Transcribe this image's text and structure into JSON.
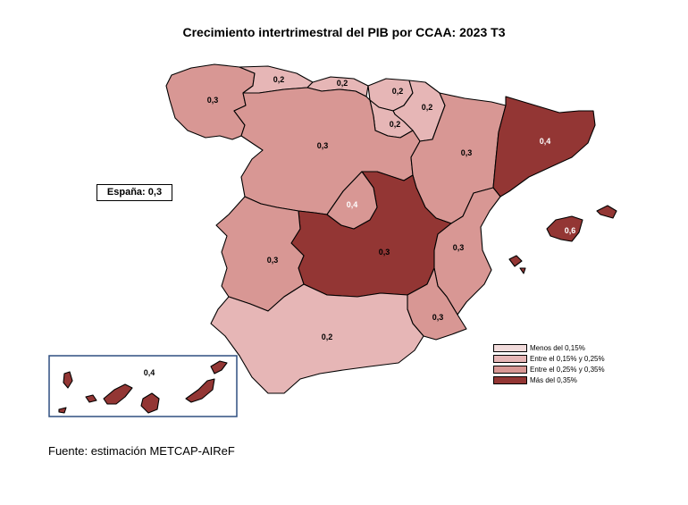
{
  "title": "Crecimiento intertrimestral del PIB por CCAA: 2023 T3",
  "national_label": "España: 0,3",
  "source": "Fuente: estimación METCAP-AIReF",
  "colors": {
    "low": "#f2dcdc",
    "mid_low": "#e6b6b6",
    "mid_high": "#d89794",
    "high": "#933634"
  },
  "regions": [
    {
      "name": "Galicia",
      "value": "0,3",
      "class": "mid_high"
    },
    {
      "name": "Asturias",
      "value": "0,2",
      "class": "mid_low"
    },
    {
      "name": "Cantabria",
      "value": "0,2",
      "class": "mid_low"
    },
    {
      "name": "País Vasco",
      "value": "0,2",
      "class": "mid_low"
    },
    {
      "name": "Navarra",
      "value": "0,2",
      "class": "mid_low"
    },
    {
      "name": "La Rioja",
      "value": "0,2",
      "class": "mid_low"
    },
    {
      "name": "Castilla y León",
      "value": "0,3",
      "class": "mid_high"
    },
    {
      "name": "Aragón",
      "value": "0,3",
      "class": "mid_high"
    },
    {
      "name": "Cataluña",
      "value": "0,4",
      "class": "high"
    },
    {
      "name": "Madrid",
      "value": "0,4",
      "class": "high"
    },
    {
      "name": "Castilla-La Mancha",
      "value": "0,3",
      "class": "mid_high"
    },
    {
      "name": "Extremadura",
      "value": "0,3",
      "class": "mid_high"
    },
    {
      "name": "Comunitat Valenciana",
      "value": "0,3",
      "class": "mid_high"
    },
    {
      "name": "Illes Balears",
      "value": "0,6",
      "class": "high"
    },
    {
      "name": "Región de Murcia",
      "value": "0,3",
      "class": "mid_high"
    },
    {
      "name": "Andalucía",
      "value": "0,2",
      "class": "mid_low"
    },
    {
      "name": "Canarias",
      "value": "0,4",
      "class": "high"
    }
  ],
  "legend": [
    {
      "label": "Menos del 0,15%",
      "class": "low"
    },
    {
      "label": "Entre el 0,15% y 0,25%",
      "class": "mid_low"
    },
    {
      "label": "Entre el 0,25% y 0,35%",
      "class": "mid_high"
    },
    {
      "label": "Más del 0,35%",
      "class": "high"
    }
  ]
}
